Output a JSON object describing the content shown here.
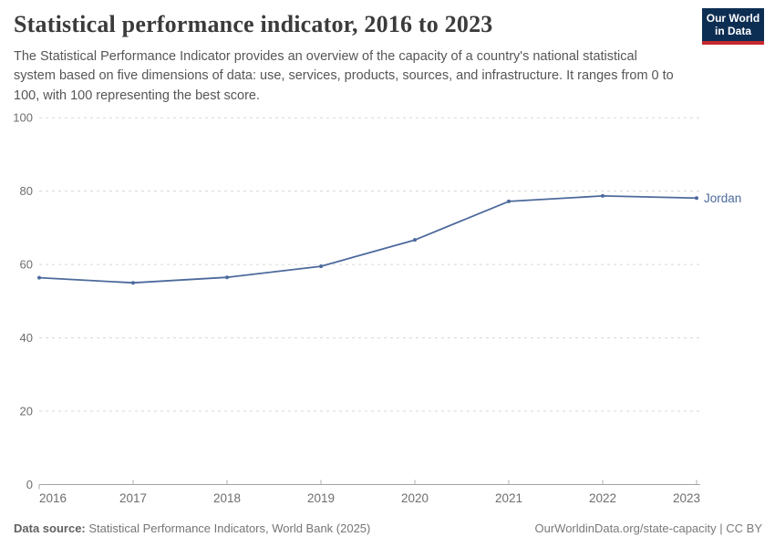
{
  "header": {
    "title": "Statistical performance indicator, 2016 to 2023",
    "subtitle": "The Statistical Performance Indicator provides an overview of the capacity of a country's national statistical system based on five dimensions of data: use, services, products, sources, and infrastructure. It ranges from 0 to 100, with 100 representing the best score.",
    "logo": {
      "line1": "Our World",
      "line2": "in Data",
      "bg_color": "#0d2e53",
      "stripe_color": "#c5282f"
    }
  },
  "chart_data": {
    "type": "line",
    "title": "Statistical performance indicator, 2016 to 2023",
    "x": [
      2016,
      2017,
      2018,
      2019,
      2020,
      2021,
      2022,
      2023
    ],
    "series": [
      {
        "name": "Jordan",
        "values": [
          56.4,
          55.0,
          56.5,
          59.5,
          66.7,
          77.2,
          78.7,
          78.1
        ],
        "color": "#4c6a9c"
      }
    ],
    "xlabel": "",
    "ylabel": "",
    "ylim": [
      0,
      100
    ],
    "yticks": [
      0,
      20,
      40,
      60,
      80,
      100
    ],
    "grid": "horizontal-dashed",
    "legend_position": "end-of-line-label",
    "markers": true
  },
  "footer": {
    "source_label": "Data source:",
    "source_text": " Statistical Performance Indicators, World Bank (2025)",
    "attribution": "OurWorldinData.org/state-capacity | CC BY"
  },
  "colors": {
    "grid": "#d8d8d8",
    "axis": "#a5a5a5",
    "tick": "#adadad",
    "tick_label": "#6e6e6e",
    "accent_line": "#4c6a9c"
  }
}
